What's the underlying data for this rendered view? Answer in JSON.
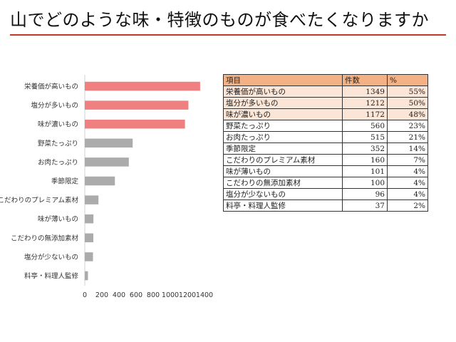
{
  "title": "山でどのような味・特徴のものが食べたくなりますか",
  "colors": {
    "accent": "#f07f7f",
    "neutral": "#ababab",
    "rule": "#c0392b",
    "table_header": "#f4b183",
    "table_highlight": "#fbe5d6"
  },
  "chart_data": {
    "type": "bar",
    "orientation": "horizontal",
    "title": "",
    "xlabel": "",
    "ylabel": "",
    "xlim": [
      0,
      1400
    ],
    "xticks": [
      0,
      200,
      400,
      600,
      800,
      1000,
      1200,
      1400
    ],
    "grid": false,
    "categories": [
      "栄養価が高いもの",
      "塩分が多いもの",
      "味が濃いもの",
      "野菜たっぷり",
      "お肉たっぷり",
      "季節限定",
      "こだわりのプレミアム素材",
      "味が薄いもの",
      "こだわりの無添加素材",
      "塩分が少ないもの",
      "料亭・料理人監修"
    ],
    "values": [
      1349,
      1212,
      1172,
      560,
      515,
      352,
      160,
      101,
      100,
      96,
      37
    ],
    "highlighted": [
      true,
      true,
      true,
      false,
      false,
      false,
      false,
      false,
      false,
      false,
      false
    ]
  },
  "table": {
    "headers": [
      "項目",
      "件数",
      "%"
    ],
    "rows": [
      {
        "item": "栄養価が高いもの",
        "count": "1349",
        "pct": "55%",
        "highlight": true
      },
      {
        "item": "塩分が多いもの",
        "count": "1212",
        "pct": "50%",
        "highlight": true
      },
      {
        "item": "味が濃いもの",
        "count": "1172",
        "pct": "48%",
        "highlight": true
      },
      {
        "item": "野菜たっぷり",
        "count": "560",
        "pct": "23%",
        "highlight": false
      },
      {
        "item": "お肉たっぷり",
        "count": "515",
        "pct": "21%",
        "highlight": false
      },
      {
        "item": "季節限定",
        "count": "352",
        "pct": "14%",
        "highlight": false
      },
      {
        "item": "こだわりのプレミアム素材",
        "count": "160",
        "pct": "7%",
        "highlight": false
      },
      {
        "item": "味が薄いもの",
        "count": "101",
        "pct": "4%",
        "highlight": false
      },
      {
        "item": "こだわりの無添加素材",
        "count": "100",
        "pct": "4%",
        "highlight": false
      },
      {
        "item": "塩分が少ないもの",
        "count": "96",
        "pct": "4%",
        "highlight": false
      },
      {
        "item": "料亭・料理人監修",
        "count": "37",
        "pct": "2%",
        "highlight": false
      }
    ]
  }
}
